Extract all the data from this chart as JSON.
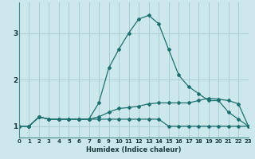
{
  "title": "",
  "xlabel": "Humidex (Indice chaleur)",
  "bg_color": "#cce8ec",
  "grid_color": "#aacdd4",
  "line_color": "#1e7070",
  "x_ticks": [
    0,
    1,
    2,
    3,
    4,
    5,
    6,
    7,
    8,
    9,
    10,
    11,
    12,
    13,
    14,
    15,
    16,
    17,
    18,
    19,
    20,
    21,
    22,
    23
  ],
  "y_ticks": [
    1,
    2,
    3
  ],
  "ylim": [
    0.75,
    3.65
  ],
  "xlim": [
    0,
    23
  ],
  "line1_x": [
    0,
    1,
    2,
    3,
    4,
    5,
    6,
    7,
    8,
    9,
    10,
    11,
    12,
    13,
    14,
    15,
    16,
    17,
    18,
    19,
    20,
    21,
    22,
    23
  ],
  "line1_y": [
    1.0,
    1.0,
    1.2,
    1.15,
    1.15,
    1.15,
    1.15,
    1.15,
    1.15,
    1.15,
    1.15,
    1.15,
    1.15,
    1.15,
    1.15,
    1.0,
    1.0,
    1.0,
    1.0,
    1.0,
    1.0,
    1.0,
    1.0,
    1.0
  ],
  "line2_x": [
    0,
    1,
    2,
    3,
    4,
    5,
    6,
    7,
    8,
    9,
    10,
    11,
    12,
    13,
    14,
    15,
    16,
    17,
    18,
    19,
    20,
    21,
    22,
    23
  ],
  "line2_y": [
    1.0,
    1.0,
    1.2,
    1.15,
    1.15,
    1.15,
    1.15,
    1.15,
    1.2,
    1.3,
    1.38,
    1.4,
    1.43,
    1.48,
    1.5,
    1.5,
    1.5,
    1.5,
    1.55,
    1.6,
    1.58,
    1.55,
    1.48,
    1.0
  ],
  "line3_x": [
    0,
    1,
    2,
    3,
    4,
    5,
    6,
    7,
    8,
    9,
    10,
    11,
    12,
    13,
    14,
    15,
    16,
    17,
    18,
    19,
    20,
    21,
    22,
    23
  ],
  "line3_y": [
    1.0,
    1.0,
    1.2,
    1.15,
    1.15,
    1.15,
    1.15,
    1.15,
    1.5,
    2.25,
    2.65,
    3.0,
    3.3,
    3.38,
    3.2,
    2.65,
    2.1,
    1.85,
    1.7,
    1.55,
    1.55,
    1.3,
    1.15,
    1.0
  ],
  "tick_fontsize": 5.0,
  "xlabel_fontsize": 6.0
}
